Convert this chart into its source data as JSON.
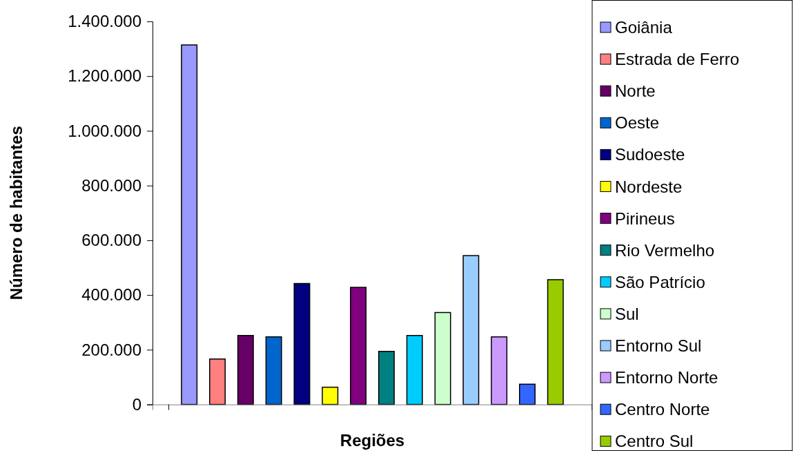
{
  "chart_data": {
    "type": "bar",
    "xlabel": "Regiões",
    "ylabel": "Número de habitantes",
    "categories": [
      null
    ],
    "series": [
      {
        "name": "Goiânia",
        "color": "#9999ff",
        "values": [
          1314000
        ]
      },
      {
        "name": "Estrada de Ferro",
        "color": "#ff8080",
        "values": [
          166000
        ]
      },
      {
        "name": "Norte",
        "color": "#660066",
        "values": [
          252000
        ]
      },
      {
        "name": "Oeste",
        "color": "#0066cc",
        "values": [
          247000
        ]
      },
      {
        "name": "Sudoeste",
        "color": "#000080",
        "values": [
          442000
        ]
      },
      {
        "name": "Nordeste",
        "color": "#ffff00",
        "values": [
          63000
        ]
      },
      {
        "name": "Pirineus",
        "color": "#800080",
        "values": [
          428000
        ]
      },
      {
        "name": "Rio Vermelho",
        "color": "#008080",
        "values": [
          194000
        ]
      },
      {
        "name": "São Patrício",
        "color": "#00ccff",
        "values": [
          252000
        ]
      },
      {
        "name": "Sul",
        "color": "#ccffcc",
        "values": [
          336000
        ]
      },
      {
        "name": "Entorno Sul",
        "color": "#99ccff",
        "values": [
          544000
        ]
      },
      {
        "name": "Entorno Norte",
        "color": "#cc99ff",
        "values": [
          247000
        ]
      },
      {
        "name": "Centro Norte",
        "color": "#3366ff",
        "values": [
          74000
        ]
      },
      {
        "name": "Centro Sul",
        "color": "#99cc00",
        "values": [
          456000
        ]
      }
    ],
    "ylim": [
      0,
      1400000
    ],
    "yticks": [
      0,
      {
        "value": 200000,
        "label": "200.000"
      },
      {
        "value": 400000,
        "label": "400.000"
      },
      {
        "value": 600000,
        "label": "600.000"
      },
      {
        "value": 800000,
        "label": "800.000"
      },
      {
        "value": 1000000,
        "label": "1.000.000"
      },
      {
        "value": 1200000,
        "label": "1.200.000"
      },
      {
        "value": 1400000,
        "label": "1.400.000"
      }
    ],
    "tick_labels": "y",
    "legend": "right",
    "grid": false
  }
}
